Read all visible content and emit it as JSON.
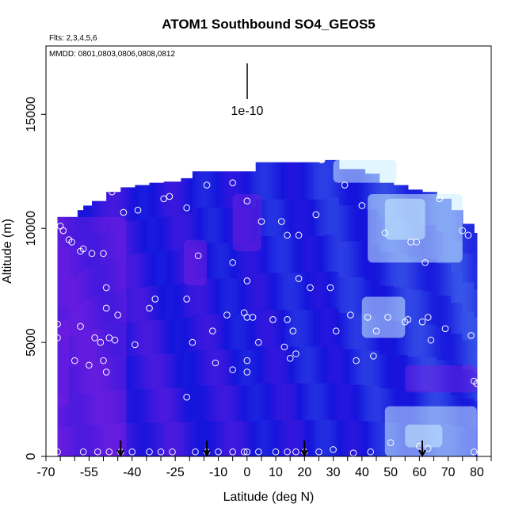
{
  "chart_data": {
    "type": "heatmap",
    "title": "ATOM1 Southbound SO4_GEOS5",
    "subtitle": "Flts: 2,3,4,5,6",
    "annotation": "MMDD: 0801,0803,0806,0808,0812",
    "scale_label": "1e-10",
    "xlabel": "Latitude (deg N)",
    "ylabel": "Altitude (m)",
    "xlim": [
      -70,
      85
    ],
    "ylim": [
      0,
      18000
    ],
    "x_ticks": [
      -70,
      -55,
      -40,
      -25,
      -10,
      0,
      10,
      20,
      30,
      40,
      50,
      60,
      70,
      80
    ],
    "x_tick_labels": [
      "-70",
      "-55",
      "-40",
      "-25",
      "-10",
      "0",
      "10",
      "20",
      "30",
      "40",
      "50",
      "60",
      "70",
      "80"
    ],
    "x_minor_ticks": [
      -65,
      -60,
      -50,
      -45,
      -35,
      -30,
      -20,
      -15,
      -5,
      5,
      15,
      25,
      35,
      45,
      55,
      65,
      75,
      85
    ],
    "y_ticks": [
      0,
      5000,
      10000,
      15000
    ],
    "y_tick_labels": [
      "0",
      "5000",
      "10000",
      "15000"
    ],
    "grid": false,
    "colors": {
      "background": "#ffffff",
      "frame": "#000000",
      "low": "#7a1fe0",
      "mid": "#1414dc",
      "high": "#c8eeff",
      "points": "#ffffff"
    },
    "profile_tops": [
      [
        -66,
        10500
      ],
      [
        -63,
        10500
      ],
      [
        -60,
        10800
      ],
      [
        -58,
        11000
      ],
      [
        -55,
        11200
      ],
      [
        -50,
        11600
      ],
      [
        -45,
        11800
      ],
      [
        -40,
        11900
      ],
      [
        -35,
        12000
      ],
      [
        -30,
        12050
      ],
      [
        -24,
        12200
      ],
      [
        -20,
        12500
      ],
      [
        -10,
        12500
      ],
      [
        0,
        12500
      ],
      [
        2,
        12900
      ],
      [
        26,
        13000
      ],
      [
        31,
        12600
      ],
      [
        40,
        12400
      ],
      [
        45,
        12000
      ],
      [
        50,
        11900
      ],
      [
        55,
        11700
      ],
      [
        60,
        11600
      ],
      [
        65,
        11300
      ],
      [
        70,
        10800
      ],
      [
        74,
        10200
      ],
      [
        78,
        9800
      ],
      [
        80,
        9800
      ]
    ],
    "regions": [
      {
        "x": [
          -66,
          -42
        ],
        "y": [
          0,
          10500
        ],
        "level": "low"
      },
      {
        "x": [
          -66,
          -62
        ],
        "y": [
          2200,
          6000
        ],
        "level": "low"
      },
      {
        "x": [
          -22,
          -14
        ],
        "y": [
          7500,
          9500
        ],
        "level": "low"
      },
      {
        "x": [
          -5,
          5
        ],
        "y": [
          9000,
          11500
        ],
        "level": "low"
      },
      {
        "x": [
          55,
          80
        ],
        "y": [
          2800,
          4000
        ],
        "level": "low"
      },
      {
        "x": [
          42,
          75
        ],
        "y": [
          8500,
          11500
        ],
        "level": "high"
      },
      {
        "x": [
          48,
          62
        ],
        "y": [
          9500,
          11300
        ],
        "level": "high"
      },
      {
        "x": [
          30,
          52
        ],
        "y": [
          12000,
          13000
        ],
        "level": "high"
      },
      {
        "x": [
          40,
          55
        ],
        "y": [
          5200,
          7000
        ],
        "level": "high"
      },
      {
        "x": [
          48,
          80
        ],
        "y": [
          0,
          2200
        ],
        "level": "high"
      },
      {
        "x": [
          55,
          68
        ],
        "y": [
          400,
          1400
        ],
        "level": "high"
      }
    ],
    "flight_points": [
      [
        -65,
        10100
      ],
      [
        -64,
        9900
      ],
      [
        -62,
        9500
      ],
      [
        -61,
        9400
      ],
      [
        -58,
        9000
      ],
      [
        -57,
        9100
      ],
      [
        -54,
        8900
      ],
      [
        -50,
        8900
      ],
      [
        -47,
        11600
      ],
      [
        -43,
        10700
      ],
      [
        -38,
        10800
      ],
      [
        -29,
        11300
      ],
      [
        -27,
        11400
      ],
      [
        -21,
        10900
      ],
      [
        -14,
        11900
      ],
      [
        -5,
        12000
      ],
      [
        0,
        11200
      ],
      [
        -17,
        8800
      ],
      [
        -5,
        8500
      ],
      [
        0,
        7700
      ],
      [
        -49,
        7400
      ],
      [
        -49,
        6500
      ],
      [
        -34,
        6500
      ],
      [
        -32,
        6900
      ],
      [
        -21,
        6900
      ],
      [
        -45,
        6200
      ],
      [
        -66,
        5800
      ],
      [
        -66,
        5200
      ],
      [
        -58,
        5700
      ],
      [
        -53,
        5200
      ],
      [
        -51,
        5000
      ],
      [
        -48,
        5200
      ],
      [
        -46,
        5100
      ],
      [
        -39,
        4900
      ],
      [
        -19,
        5000
      ],
      [
        -12,
        5500
      ],
      [
        -7,
        6200
      ],
      [
        -1,
        6300
      ],
      [
        0,
        6100
      ],
      [
        2,
        6100
      ],
      [
        4,
        5000
      ],
      [
        9,
        6000
      ],
      [
        14,
        6000
      ],
      [
        16,
        5500
      ],
      [
        13,
        4800
      ],
      [
        17,
        4500
      ],
      [
        15,
        4300
      ],
      [
        -60,
        4200
      ],
      [
        -55,
        4000
      ],
      [
        -50,
        4200
      ],
      [
        -49,
        3700
      ],
      [
        -11,
        4100
      ],
      [
        -5,
        3800
      ],
      [
        0,
        4200
      ],
      [
        0,
        3700
      ],
      [
        -21,
        2600
      ],
      [
        5,
        10300
      ],
      [
        12,
        10300
      ],
      [
        14,
        9700
      ],
      [
        18,
        9700
      ],
      [
        18,
        7800
      ],
      [
        22,
        7400
      ],
      [
        29,
        7400
      ],
      [
        24,
        10600
      ],
      [
        26,
        13000
      ],
      [
        34,
        11900
      ],
      [
        40,
        11000
      ],
      [
        48,
        9800
      ],
      [
        57,
        9400
      ],
      [
        59,
        9400
      ],
      [
        62,
        8500
      ],
      [
        61,
        5900
      ],
      [
        56,
        6000
      ],
      [
        55,
        5900
      ],
      [
        49,
        6100
      ],
      [
        45,
        5500
      ],
      [
        42,
        6100
      ],
      [
        36,
        6200
      ],
      [
        31,
        5500
      ],
      [
        38,
        4200
      ],
      [
        44,
        4400
      ],
      [
        63,
        6100
      ],
      [
        64,
        5100
      ],
      [
        69,
        5600
      ],
      [
        67,
        11300
      ],
      [
        75,
        9900
      ],
      [
        77,
        9700
      ],
      [
        78,
        5300
      ],
      [
        79,
        3300
      ],
      [
        80,
        3200
      ],
      [
        -66,
        200
      ],
      [
        -57,
        200
      ],
      [
        -52,
        200
      ],
      [
        -48,
        200
      ],
      [
        -44,
        200
      ],
      [
        -40,
        200
      ],
      [
        -34,
        200
      ],
      [
        -30,
        200
      ],
      [
        -26,
        200
      ],
      [
        -18,
        200
      ],
      [
        -14,
        200
      ],
      [
        -10,
        200
      ],
      [
        -5,
        200
      ],
      [
        -1,
        200
      ],
      [
        0,
        200
      ],
      [
        4,
        200
      ],
      [
        10,
        200
      ],
      [
        14,
        200
      ],
      [
        17,
        200
      ],
      [
        20,
        200
      ],
      [
        25,
        200
      ],
      [
        30,
        300
      ],
      [
        37,
        150
      ],
      [
        43,
        200
      ],
      [
        50,
        600
      ],
      [
        60,
        450
      ],
      [
        63,
        350
      ],
      [
        79,
        200
      ]
    ],
    "arrow_latitudes": [
      -44,
      -14,
      20,
      61
    ]
  }
}
